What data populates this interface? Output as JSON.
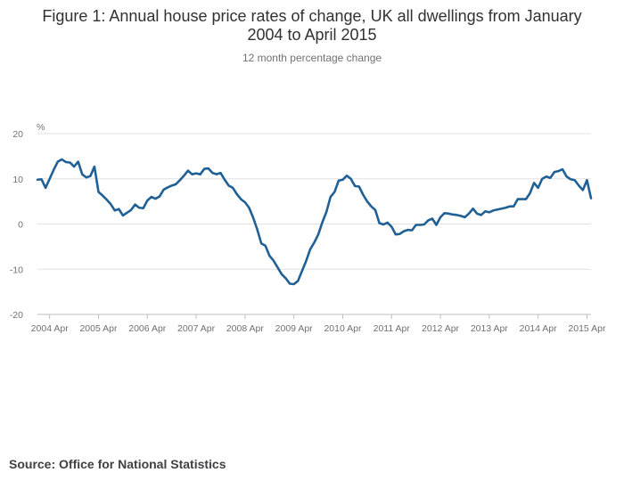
{
  "chart_data": {
    "type": "line",
    "title": "Figure 1: Annual house price rates of change, UK all dwellings from January 2004 to April 2015",
    "title_lines": [
      "Figure 1: Annual house price rates of change, UK all dwellings from January",
      "2004 to April 2015"
    ],
    "subtitle": "12 month percentage change",
    "ylabel": "%",
    "xlabel": "",
    "ylim": [
      -20,
      20
    ],
    "yticks": [
      20,
      10,
      0,
      -10,
      -20
    ],
    "grid": true,
    "x_tick_labels": [
      "2004 Apr",
      "2005 Apr",
      "2006 Apr",
      "2007 Apr",
      "2008 Apr",
      "2009 Apr",
      "2010 Apr",
      "2011 Apr",
      "2012 Apr",
      "2013 Apr",
      "2014 Apr",
      "2015 Apr"
    ],
    "x_start": "2004-01",
    "x_end": "2015-04",
    "line_color": "#206095",
    "series": [
      {
        "name": "UK all dwellings",
        "values": [
          9.8,
          9.9,
          8.0,
          10.0,
          12.0,
          13.8,
          14.3,
          13.7,
          13.6,
          12.7,
          13.8,
          11.0,
          10.3,
          10.6,
          12.7,
          7.1,
          6.3,
          5.4,
          4.4,
          3.0,
          3.3,
          1.9,
          2.5,
          3.1,
          4.3,
          3.6,
          3.5,
          5.2,
          6.0,
          5.6,
          6.1,
          7.6,
          8.1,
          8.5,
          8.8,
          9.7,
          10.7,
          11.8,
          11.0,
          11.2,
          11.0,
          12.2,
          12.3,
          11.3,
          11.0,
          11.3,
          9.8,
          8.5,
          8.0,
          6.6,
          5.5,
          4.8,
          3.6,
          1.4,
          -1.2,
          -4.3,
          -4.8,
          -7.0,
          -8.1,
          -9.6,
          -11.1,
          -12.0,
          -13.2,
          -13.3,
          -12.6,
          -10.4,
          -8.2,
          -5.6,
          -4.1,
          -2.3,
          0.4,
          2.7,
          6.0,
          7.1,
          9.6,
          9.8,
          10.7,
          10.0,
          8.4,
          8.3,
          6.5,
          5.0,
          3.9,
          3.1,
          0.2,
          -0.1,
          0.3,
          -0.6,
          -2.3,
          -2.2,
          -1.6,
          -1.3,
          -1.4,
          -0.2,
          -0.2,
          -0.1,
          0.8,
          1.2,
          -0.2,
          1.5,
          2.4,
          2.3,
          2.1,
          2.0,
          1.8,
          1.5,
          2.3,
          3.4,
          2.3,
          2.0,
          2.8,
          2.6,
          3.0,
          3.2,
          3.4,
          3.6,
          3.9,
          3.9,
          5.5,
          5.5,
          5.5,
          6.8,
          9.1,
          8.0,
          10.0,
          10.5,
          10.2,
          11.5,
          11.7,
          12.1,
          10.5,
          9.9,
          9.7,
          8.5,
          7.5,
          9.7,
          5.7
        ]
      }
    ]
  },
  "footer": {
    "source": "Source: Office for National Statistics"
  }
}
